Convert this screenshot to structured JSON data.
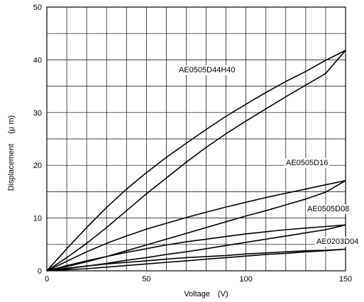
{
  "chart_data": {
    "type": "line",
    "title": "",
    "xlabel": "Voltage　(V)",
    "ylabel": "Displacement 　(μ m)",
    "xlim": [
      0,
      150
    ],
    "ylim": [
      0,
      50
    ],
    "xticks": [
      0,
      50,
      100,
      150
    ],
    "yticks": [
      0,
      10,
      20,
      30,
      40,
      50
    ],
    "grid": true,
    "line_color": "#000000",
    "series": [
      {
        "name": "AE0505D44H40",
        "ascending": {
          "x": [
            0,
            10,
            20,
            30,
            40,
            50,
            60,
            70,
            80,
            90,
            100,
            110,
            120,
            130,
            140,
            150
          ],
          "y": [
            0,
            2.5,
            5.2,
            8.2,
            11.4,
            14.6,
            17.6,
            20.6,
            23.4,
            26.0,
            28.4,
            30.7,
            33.0,
            35.2,
            37.4,
            41.8
          ]
        },
        "descending": {
          "x": [
            0,
            10,
            20,
            30,
            40,
            50,
            60,
            70,
            80,
            90,
            100,
            110,
            120,
            130,
            140,
            150
          ],
          "y": [
            0,
            4.2,
            8.2,
            12.0,
            15.5,
            18.6,
            21.5,
            24.2,
            26.8,
            29.3,
            31.6,
            33.8,
            35.9,
            37.8,
            39.9,
            41.8
          ]
        }
      },
      {
        "name": "AE0505D16",
        "ascending": {
          "x": [
            0,
            10,
            20,
            30,
            40,
            50,
            60,
            70,
            80,
            90,
            100,
            110,
            120,
            130,
            140,
            150
          ],
          "y": [
            0,
            0.8,
            1.7,
            2.7,
            3.8,
            4.9,
            6.0,
            7.1,
            8.2,
            9.3,
            10.4,
            11.4,
            12.5,
            13.6,
            14.9,
            17.1
          ]
        },
        "descending": {
          "x": [
            0,
            10,
            20,
            30,
            40,
            50,
            60,
            70,
            80,
            90,
            100,
            110,
            120,
            130,
            140,
            150
          ],
          "y": [
            0,
            1.8,
            3.6,
            5.2,
            6.6,
            7.9,
            9.0,
            10.1,
            11.1,
            12.1,
            13.0,
            13.9,
            14.7,
            15.5,
            16.3,
            17.1
          ]
        }
      },
      {
        "name": "AE0505D08",
        "ascending": {
          "x": [
            0,
            10,
            20,
            30,
            40,
            50,
            60,
            70,
            80,
            90,
            100,
            110,
            120,
            130,
            140,
            150
          ],
          "y": [
            0,
            0.4,
            0.9,
            1.4,
            2.0,
            2.5,
            3.1,
            3.6,
            4.2,
            4.8,
            5.4,
            6.0,
            6.6,
            7.2,
            7.8,
            8.7
          ]
        },
        "descending": {
          "x": [
            0,
            10,
            20,
            30,
            40,
            50,
            60,
            70,
            80,
            90,
            100,
            110,
            120,
            130,
            140,
            150
          ],
          "y": [
            0,
            1.0,
            1.9,
            2.7,
            3.5,
            4.2,
            4.9,
            5.5,
            6.0,
            6.5,
            7.0,
            7.4,
            7.8,
            8.1,
            8.4,
            8.7
          ]
        }
      },
      {
        "name": "AE0203D04",
        "ascending": {
          "x": [
            0,
            10,
            20,
            30,
            40,
            50,
            60,
            70,
            80,
            90,
            100,
            110,
            120,
            130,
            140,
            150
          ],
          "y": [
            0,
            0.2,
            0.4,
            0.7,
            1.0,
            1.3,
            1.6,
            1.9,
            2.2,
            2.5,
            2.8,
            3.1,
            3.3,
            3.6,
            3.8,
            4.1
          ]
        },
        "descending": {
          "x": [
            0,
            10,
            20,
            30,
            40,
            50,
            60,
            70,
            80,
            90,
            100,
            110,
            120,
            130,
            140,
            150
          ],
          "y": [
            0,
            0.5,
            0.9,
            1.3,
            1.6,
            1.9,
            2.2,
            2.5,
            2.7,
            2.9,
            3.2,
            3.4,
            3.6,
            3.8,
            3.9,
            4.1
          ]
        }
      }
    ]
  }
}
